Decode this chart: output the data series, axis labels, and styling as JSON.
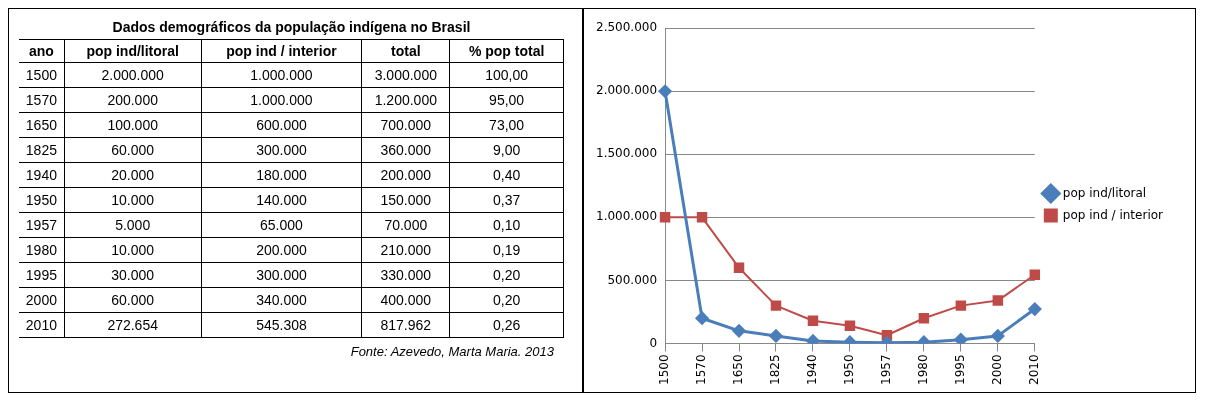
{
  "chart_data": [
    {
      "type": "other",
      "title": "Dados demográficos da população indígena no Brasil",
      "xlabel": "ano",
      "categories": [
        "1500",
        "1570",
        "1650",
        "1825",
        "1940",
        "1950",
        "1957",
        "1980",
        "1995",
        "2000",
        "2010"
      ],
      "series": [
        {
          "name": "pop ind/litoral",
          "values": [
            2000000,
            200000,
            100000,
            60000,
            20000,
            10000,
            5000,
            10000,
            30000,
            60000,
            272654
          ],
          "value_labels": [
            "2.000.000",
            "200.000",
            "100.000",
            "60.000",
            "20.000",
            "10.000",
            "5.000",
            "10.000",
            "30.000",
            "60.000",
            "272.654"
          ]
        },
        {
          "name": "pop ind / interior",
          "values": [
            1000000,
            1000000,
            600000,
            300000,
            180000,
            140000,
            65000,
            200000,
            300000,
            340000,
            545308
          ],
          "value_labels": [
            "1.000.000",
            "1.000.000",
            "600.000",
            "300.000",
            "180.000",
            "140.000",
            "65.000",
            "200.000",
            "300.000",
            "340.000",
            "545.308"
          ]
        },
        {
          "name": "total",
          "values": [
            3000000,
            1200000,
            700000,
            360000,
            200000,
            150000,
            70000,
            210000,
            330000,
            400000,
            817962
          ],
          "value_labels": [
            "3.000.000",
            "1.200.000",
            "700.000",
            "360.000",
            "200.000",
            "150.000",
            "70.000",
            "210.000",
            "330.000",
            "400.000",
            "817.962"
          ]
        },
        {
          "name": "% pop total",
          "values": [
            100,
            95,
            73,
            9,
            0.4,
            0.37,
            0.1,
            0.19,
            0.2,
            0.2,
            0.26
          ],
          "value_labels": [
            "100,00",
            "95,00",
            "73,00",
            "9,00",
            "0,40",
            "0,37",
            "0,10",
            "0,19",
            "0,20",
            "0,20",
            "0,26"
          ]
        }
      ],
      "annotations": [
        "Fonte: Azevedo, Marta Maria. 2013"
      ]
    },
    {
      "type": "line",
      "categories": [
        "1500",
        "1570",
        "1650",
        "1825",
        "1940",
        "1950",
        "1957",
        "1980",
        "1995",
        "2000",
        "2010"
      ],
      "series": [
        {
          "name": "pop ind/litoral",
          "color": "#4a7ebb",
          "marker": "diamond",
          "values": [
            2000000,
            200000,
            100000,
            60000,
            20000,
            10000,
            5000,
            10000,
            30000,
            60000,
            272654
          ]
        },
        {
          "name": "pop ind / interior",
          "color": "#be4b48",
          "marker": "square",
          "values": [
            1000000,
            1000000,
            600000,
            300000,
            180000,
            140000,
            65000,
            200000,
            300000,
            340000,
            545308
          ]
        }
      ],
      "ylim": [
        0,
        2500000
      ],
      "yticks": [
        0,
        {
          "value": 500000,
          "label": "500.000"
        },
        {
          "value": 1000000,
          "label": "1.000.000"
        },
        {
          "value": 1500000,
          "label": "1.500.000"
        },
        {
          "value": 2000000,
          "label": "2.000.000"
        },
        {
          "value": 2500000,
          "label": "2.500.000"
        }
      ],
      "grid": "y",
      "legend": "right"
    }
  ]
}
